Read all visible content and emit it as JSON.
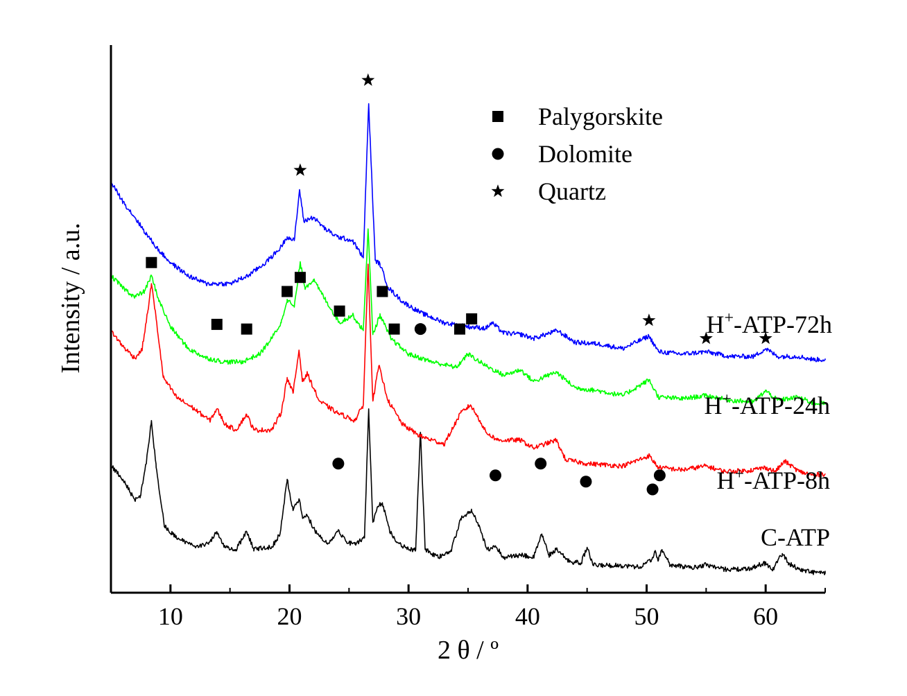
{
  "chart_data": {
    "type": "line",
    "xlabel": "2 θ / º",
    "ylabel": "Intensity / a.u.",
    "xlim": [
      5,
      65
    ],
    "xticks": [
      10,
      20,
      30,
      40,
      50,
      60
    ],
    "y_units": "arbitrary (stacked, offset traces)",
    "legend": {
      "placement": "top-right",
      "entries": [
        {
          "marker": "square",
          "label": "Palygorskite"
        },
        {
          "marker": "circle",
          "label": "Dolomite"
        },
        {
          "marker": "star",
          "label": "Quartz"
        }
      ]
    },
    "series": [
      {
        "name": "C-ATP",
        "color": "#000000",
        "label_parts": [
          "C-ATP"
        ],
        "x": [
          5,
          6,
          7,
          7.5,
          8,
          8.4,
          8.8,
          9.5,
          10.5,
          12,
          13.2,
          13.9,
          14.6,
          15.5,
          16.4,
          17,
          18.5,
          19.2,
          19.8,
          20.3,
          20.8,
          21.1,
          21.5,
          22.2,
          23.2,
          24.1,
          24.8,
          25.5,
          26.3,
          26.65,
          27,
          27.4,
          27.8,
          28.4,
          29,
          30,
          30.6,
          31.0,
          31.4,
          32.5,
          33.6,
          34.4,
          34.9,
          35.3,
          35.9,
          36.6,
          37.3,
          38,
          39.5,
          40.5,
          41.2,
          41.8,
          42.4,
          43.5,
          44.5,
          45.0,
          45.5,
          47.5,
          49.5,
          50.4,
          50.7,
          51.0,
          51.3,
          52,
          54,
          55,
          56.5,
          58.5,
          59.9,
          60.6,
          61.4,
          61.9,
          62.8,
          64,
          65
        ],
        "y": [
          1.63,
          1.45,
          1.18,
          1.25,
          1.7,
          2.2,
          1.6,
          0.85,
          0.7,
          0.6,
          0.62,
          0.78,
          0.58,
          0.55,
          0.78,
          0.56,
          0.58,
          0.75,
          1.45,
          1.05,
          1.2,
          0.95,
          0.98,
          0.78,
          0.62,
          0.8,
          0.65,
          0.62,
          0.7,
          2.35,
          0.9,
          1.1,
          1.15,
          0.8,
          0.65,
          0.55,
          0.55,
          2.05,
          0.55,
          0.45,
          0.55,
          0.95,
          1.0,
          1.05,
          0.85,
          0.55,
          0.6,
          0.45,
          0.48,
          0.45,
          0.75,
          0.48,
          0.55,
          0.4,
          0.38,
          0.58,
          0.35,
          0.35,
          0.33,
          0.42,
          0.52,
          0.42,
          0.55,
          0.35,
          0.32,
          0.36,
          0.3,
          0.3,
          0.38,
          0.3,
          0.5,
          0.38,
          0.3,
          0.26,
          0.25
        ]
      },
      {
        "name": "H+-ATP-8h",
        "color": "#ff0000",
        "label_parts": [
          "H",
          "+",
          "-ATP-8h"
        ],
        "x": [
          5,
          6,
          7,
          7.6,
          8.1,
          8.4,
          8.8,
          9.4,
          10.5,
          12,
          13.3,
          13.9,
          14.6,
          15.5,
          16.4,
          17,
          18.5,
          19.3,
          19.8,
          20.3,
          20.8,
          21.1,
          21.5,
          22.5,
          24,
          25.5,
          26.2,
          26.6,
          27,
          27.5,
          28.3,
          29.5,
          31,
          33,
          34.4,
          35.2,
          36,
          36.5,
          37.5,
          39.4,
          40.5,
          42.4,
          43.2,
          45,
          48,
          50.2,
          51,
          53,
          55,
          56.5,
          58.5,
          60,
          60.8,
          61.6,
          62.8,
          64,
          65
        ],
        "y": [
          3.35,
          3.15,
          3.0,
          3.1,
          3.6,
          3.95,
          3.5,
          2.75,
          2.5,
          2.35,
          2.2,
          2.35,
          2.15,
          2.08,
          2.28,
          2.08,
          2.08,
          2.3,
          2.75,
          2.55,
          3.1,
          2.7,
          2.8,
          2.45,
          2.3,
          2.2,
          2.4,
          4.2,
          2.45,
          2.9,
          2.45,
          2.15,
          2.0,
          1.9,
          2.3,
          2.4,
          2.2,
          2.05,
          1.95,
          1.95,
          1.85,
          1.95,
          1.7,
          1.65,
          1.62,
          1.75,
          1.6,
          1.57,
          1.62,
          1.55,
          1.56,
          1.6,
          1.55,
          1.68,
          1.55,
          1.5,
          1.52
        ]
      },
      {
        "name": "H+-ATP-24h",
        "color": "#00ff00",
        "label_parts": [
          "H",
          "+",
          "-ATP-24h"
        ],
        "x": [
          5,
          6,
          7,
          7.8,
          8.4,
          9,
          10,
          11.5,
          13,
          14.5,
          16,
          17.5,
          18.5,
          19.3,
          19.8,
          20.4,
          20.9,
          21.3,
          22,
          23,
          24.2,
          25.3,
          26.2,
          26.6,
          27,
          27.6,
          28.5,
          30,
          32,
          34,
          35.0,
          36,
          36.5,
          38,
          39.4,
          40.5,
          42.4,
          44,
          46,
          48,
          50.2,
          51,
          53,
          55,
          57,
          59,
          60,
          61,
          62.8,
          64,
          65
        ],
        "y": [
          4.05,
          3.9,
          3.78,
          3.85,
          4.05,
          3.75,
          3.4,
          3.12,
          3.0,
          2.95,
          2.95,
          3.05,
          3.25,
          3.45,
          3.75,
          3.65,
          4.22,
          3.9,
          4.0,
          3.75,
          3.45,
          3.55,
          3.35,
          4.65,
          3.3,
          3.55,
          3.25,
          3.05,
          2.95,
          2.88,
          3.05,
          2.95,
          2.9,
          2.78,
          2.85,
          2.7,
          2.82,
          2.62,
          2.58,
          2.52,
          2.72,
          2.5,
          2.48,
          2.52,
          2.46,
          2.44,
          2.58,
          2.46,
          2.5,
          2.42,
          2.42
        ]
      },
      {
        "name": "H+-ATP-72h",
        "color": "#0000ff",
        "label_parts": [
          "H",
          "+",
          "-ATP-72h"
        ],
        "x": [
          5,
          6,
          7,
          8,
          9,
          10,
          11.5,
          13,
          15,
          16.5,
          18,
          19.2,
          19.8,
          20.4,
          20.85,
          21.2,
          22,
          23,
          24,
          25.3,
          26.2,
          26.65,
          27.2,
          27.6,
          28.3,
          29.5,
          31,
          33,
          35,
          36.5,
          37,
          38,
          39.5,
          40.5,
          42.5,
          44,
          46,
          48,
          50.2,
          51,
          53,
          55,
          57,
          59,
          60,
          61,
          62.8,
          64,
          65
        ],
        "y": [
          5.25,
          5.0,
          4.8,
          4.58,
          4.38,
          4.22,
          4.05,
          3.95,
          3.95,
          4.05,
          4.22,
          4.4,
          4.55,
          4.5,
          5.15,
          4.75,
          4.8,
          4.65,
          4.55,
          4.5,
          4.28,
          6.25,
          4.25,
          4.2,
          3.9,
          3.72,
          3.58,
          3.45,
          3.4,
          3.38,
          3.45,
          3.32,
          3.3,
          3.25,
          3.35,
          3.2,
          3.18,
          3.12,
          3.28,
          3.08,
          3.05,
          3.08,
          3.02,
          3.02,
          3.12,
          3.02,
          3.02,
          2.98,
          2.98
        ]
      }
    ],
    "annotations": [
      {
        "marker": "star",
        "x": 26.6,
        "y": 6.55
      },
      {
        "marker": "star",
        "x": 20.9,
        "y": 5.4
      },
      {
        "marker": "star",
        "x": 50.2,
        "y": 3.48
      },
      {
        "marker": "star",
        "x": 55.0,
        "y": 3.25
      },
      {
        "marker": "star",
        "x": 60.0,
        "y": 3.25
      },
      {
        "marker": "square",
        "x": 8.4,
        "y": 4.22
      },
      {
        "marker": "square",
        "x": 20.9,
        "y": 4.03
      },
      {
        "marker": "square",
        "x": 19.8,
        "y": 3.85
      },
      {
        "marker": "square",
        "x": 27.8,
        "y": 3.85
      },
      {
        "marker": "square",
        "x": 24.2,
        "y": 3.6
      },
      {
        "marker": "square",
        "x": 35.3,
        "y": 3.5
      },
      {
        "marker": "square",
        "x": 13.9,
        "y": 3.43
      },
      {
        "marker": "square",
        "x": 16.4,
        "y": 3.37
      },
      {
        "marker": "square",
        "x": 28.8,
        "y": 3.37
      },
      {
        "marker": "square",
        "x": 34.3,
        "y": 3.37
      },
      {
        "marker": "circle",
        "x": 31.0,
        "y": 3.37
      },
      {
        "marker": "circle",
        "x": 24.1,
        "y": 1.65
      },
      {
        "marker": "circle",
        "x": 41.1,
        "y": 1.65
      },
      {
        "marker": "circle",
        "x": 37.3,
        "y": 1.5
      },
      {
        "marker": "circle",
        "x": 51.1,
        "y": 1.5
      },
      {
        "marker": "circle",
        "x": 44.9,
        "y": 1.42
      },
      {
        "marker": "circle",
        "x": 50.5,
        "y": 1.32
      }
    ]
  }
}
